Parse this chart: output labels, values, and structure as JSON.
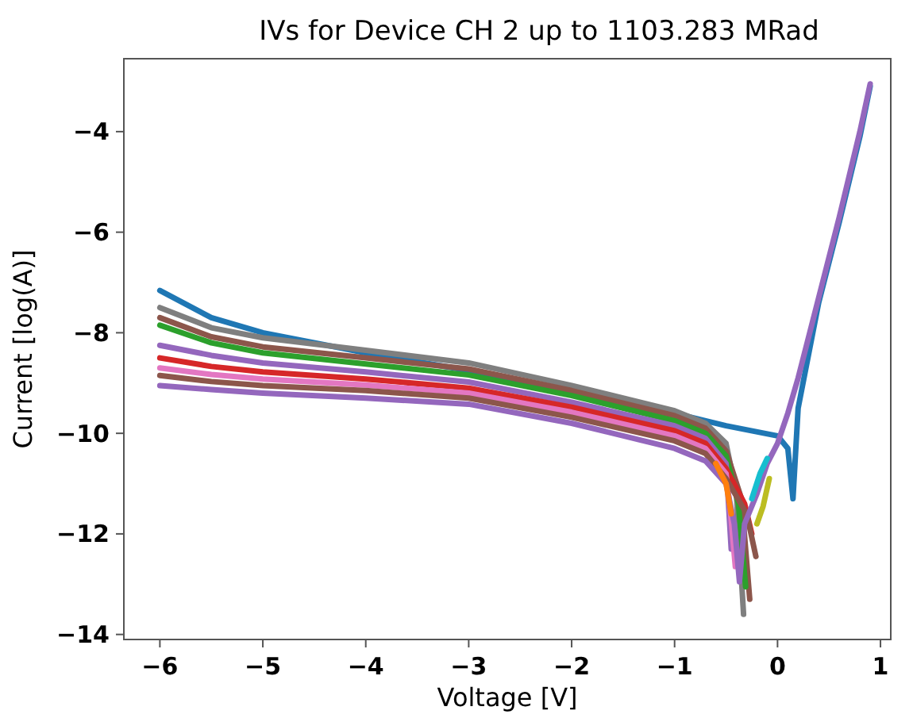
{
  "chart_data": {
    "type": "line",
    "title": "IVs for Device CH 2 up to 1103.283 MRad",
    "xlabel": "Voltage [V]",
    "ylabel": "Current [log(A)]",
    "xlim": [
      -6.35,
      1.1
    ],
    "ylim": [
      -14.1,
      -2.55
    ],
    "xticks": [
      -6,
      -5,
      -4,
      -3,
      -2,
      -1,
      0,
      1
    ],
    "yticks": [
      -14,
      -12,
      -10,
      -8,
      -6,
      -4
    ],
    "series": [
      {
        "color": "#1f77b4",
        "x": [
          -6,
          -5.5,
          -5,
          -4,
          -3,
          -2,
          -1,
          -0.5,
          0,
          0.1,
          0.15,
          0.2,
          0.4,
          0.6,
          0.8,
          0.9
        ],
        "values": [
          -7.16,
          -7.7,
          -8.0,
          -8.4,
          -8.75,
          -9.15,
          -9.6,
          -9.85,
          -10.05,
          -10.3,
          -11.3,
          -9.5,
          -7.4,
          -5.8,
          -4.1,
          -3.1
        ]
      },
      {
        "color": "#7f7f7f",
        "x": [
          -6,
          -5.5,
          -5,
          -4,
          -3,
          -2,
          -1,
          -0.7,
          -0.5,
          -0.4,
          -0.33
        ],
        "values": [
          -7.5,
          -7.9,
          -8.1,
          -8.35,
          -8.6,
          -9.05,
          -9.55,
          -9.8,
          -10.2,
          -11.2,
          -13.6
        ]
      },
      {
        "color": "#8c564b",
        "x": [
          -6,
          -5.5,
          -5,
          -4,
          -3,
          -2,
          -1,
          -0.7,
          -0.5,
          -0.35,
          -0.27
        ],
        "values": [
          -7.7,
          -8.08,
          -8.28,
          -8.5,
          -8.72,
          -9.15,
          -9.65,
          -9.9,
          -10.35,
          -11.3,
          -13.3
        ]
      },
      {
        "color": "#2ca02c",
        "x": [
          -6,
          -5.5,
          -5,
          -4,
          -3,
          -2,
          -1,
          -0.7,
          -0.5,
          -0.38,
          -0.31
        ],
        "values": [
          -7.85,
          -8.2,
          -8.4,
          -8.62,
          -8.84,
          -9.25,
          -9.75,
          -10.0,
          -10.45,
          -11.4,
          -13.05
        ]
      },
      {
        "color": "#9467bd",
        "x": [
          -6,
          -5.5,
          -5,
          -4,
          -3,
          -2,
          -1,
          -0.7,
          -0.5,
          -0.45
        ],
        "values": [
          -8.25,
          -8.45,
          -8.6,
          -8.78,
          -8.98,
          -9.38,
          -9.85,
          -10.1,
          -10.6,
          -12.3
        ]
      },
      {
        "color": "#d62728",
        "x": [
          -6,
          -5.5,
          -5,
          -4,
          -3,
          -2,
          -1,
          -0.7,
          -0.5,
          -0.32,
          -0.25
        ],
        "values": [
          -8.5,
          -8.67,
          -8.78,
          -8.92,
          -9.1,
          -9.48,
          -9.95,
          -10.2,
          -10.7,
          -11.4,
          -12.0
        ]
      },
      {
        "color": "#e377c2",
        "x": [
          -6,
          -5.5,
          -5,
          -4,
          -3,
          -2,
          -1,
          -0.7,
          -0.5,
          -0.46,
          -0.41
        ],
        "values": [
          -8.7,
          -8.83,
          -8.92,
          -9.04,
          -9.2,
          -9.58,
          -10.05,
          -10.3,
          -10.8,
          -11.5,
          -12.65
        ]
      },
      {
        "color": "#8c564b",
        "x": [
          -6,
          -5.5,
          -5,
          -4,
          -3,
          -2,
          -1,
          -0.7,
          -0.5,
          -0.3,
          -0.21
        ],
        "values": [
          -8.85,
          -8.97,
          -9.05,
          -9.15,
          -9.3,
          -9.68,
          -10.15,
          -10.4,
          -10.9,
          -11.6,
          -12.45
        ]
      },
      {
        "color": "#9467bd",
        "x": [
          -6,
          -5.5,
          -5,
          -4,
          -3,
          -2,
          -1,
          -0.7,
          -0.5,
          -0.42,
          -0.37,
          -0.32,
          -0.2,
          -0.1,
          0,
          0.1,
          0.2,
          0.4,
          0.6,
          0.8,
          0.9
        ],
        "values": [
          -9.05,
          -9.13,
          -9.2,
          -9.3,
          -9.42,
          -9.8,
          -10.3,
          -10.55,
          -11.0,
          -11.8,
          -12.95,
          -11.8,
          -11.2,
          -10.6,
          -10.2,
          -9.6,
          -8.9,
          -7.3,
          -5.7,
          -4.0,
          -3.05
        ]
      },
      {
        "color": "#ff7f0e",
        "x": [
          -0.6,
          -0.5,
          -0.45
        ],
        "values": [
          -10.6,
          -11.0,
          -11.6
        ]
      },
      {
        "color": "#17becf",
        "x": [
          -0.25,
          -0.17,
          -0.1
        ],
        "values": [
          -11.3,
          -10.8,
          -10.5
        ]
      },
      {
        "color": "#bcbd22",
        "x": [
          -0.2,
          -0.14,
          -0.08
        ],
        "values": [
          -11.8,
          -11.45,
          -10.9
        ]
      }
    ]
  }
}
